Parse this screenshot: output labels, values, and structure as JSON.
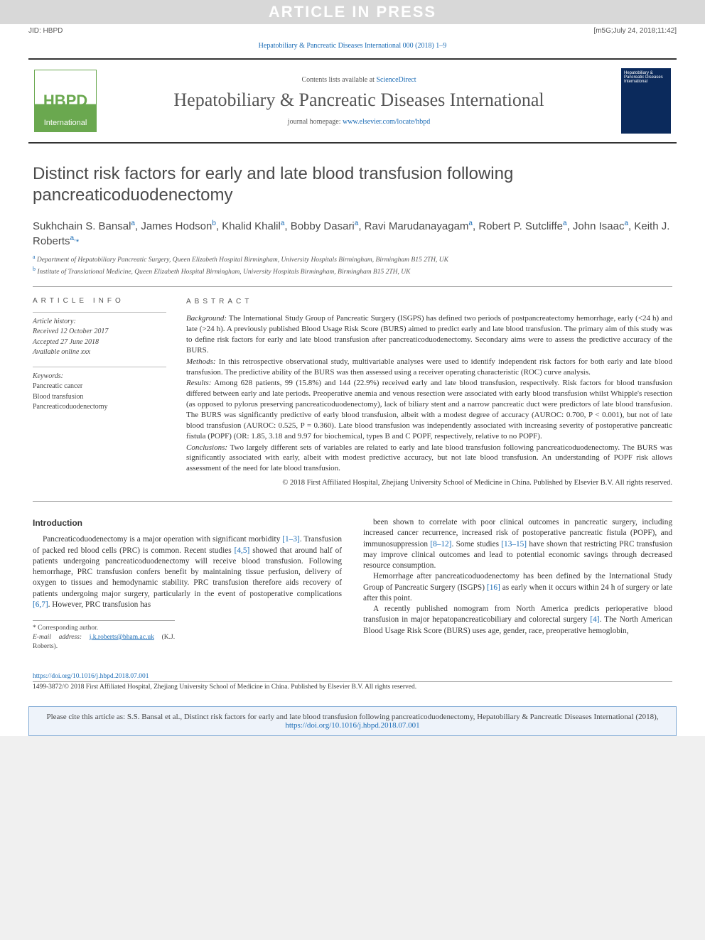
{
  "watermark": "ARTICLE IN PRESS",
  "meta_left": "JID: HBPD",
  "meta_right": "[m5G;July 24, 2018;11:42]",
  "citation_top": "Hepatobiliary & Pancreatic Diseases International 000 (2018) 1–9",
  "masthead": {
    "logo_top": "HBPD",
    "logo_bottom": "International",
    "contents_prefix": "Contents lists available at ",
    "contents_link": "ScienceDirect",
    "journal_title": "Hepatobiliary & Pancreatic Diseases International",
    "homepage_prefix": "journal homepage: ",
    "homepage_url": "www.elsevier.com/locate/hbpd",
    "cover_text": "Hepatobiliary & Pancreatic Diseases International"
  },
  "article": {
    "title": "Distinct risk factors for early and late blood transfusion following pancreaticoduodenectomy",
    "authors_html": "Sukhchain S. Bansal<sup>a</sup>, James Hodson<sup>b</sup>, Khalid Khalil<sup>a</sup>, Bobby Dasari<sup>a</sup>, Ravi Marudanayagam<sup>a</sup>, Robert P. Sutcliffe<sup>a</sup>, John Isaac<sup>a</sup>, Keith J. Roberts<sup>a,</sup><span class='corr'>*</span>",
    "affiliations": [
      {
        "sup": "a",
        "text": "Department of Hepatobiliary Pancreatic Surgery, Queen Elizabeth Hospital Birmingham, University Hospitals Birmingham, Birmingham B15 2TH, UK"
      },
      {
        "sup": "b",
        "text": "Institute of Translational Medicine, Queen Elizabeth Hospital Birmingham, University Hospitals Birmingham, Birmingham B15 2TH, UK"
      }
    ]
  },
  "info": {
    "heading": "article info",
    "history_label": "Article history:",
    "received": "Received 12 October 2017",
    "accepted": "Accepted 27 June 2018",
    "available": "Available online xxx",
    "keywords_label": "Keywords:",
    "keywords": [
      "Pancreatic cancer",
      "Blood transfusion",
      "Pancreaticoduodenectomy"
    ]
  },
  "abstract": {
    "heading": "abstract",
    "sections": [
      {
        "label": "Background:",
        "text": "The International Study Group of Pancreatic Surgery (ISGPS) has defined two periods of postpancreatectomy hemorrhage, early (<24 h) and late (>24 h). A previously published Blood Usage Risk Score (BURS) aimed to predict early and late blood transfusion. The primary aim of this study was to define risk factors for early and late blood transfusion after pancreaticoduodenectomy. Secondary aims were to assess the predictive accuracy of the BURS."
      },
      {
        "label": "Methods:",
        "text": "In this retrospective observational study, multivariable analyses were used to identify independent risk factors for both early and late blood transfusion. The predictive ability of the BURS was then assessed using a receiver operating characteristic (ROC) curve analysis."
      },
      {
        "label": "Results:",
        "text": "Among 628 patients, 99 (15.8%) and 144 (22.9%) received early and late blood transfusion, respectively. Risk factors for blood transfusion differed between early and late periods. Preoperative anemia and venous resection were associated with early blood transfusion whilst Whipple's resection (as opposed to pylorus preserving pancreaticoduodenectomy), lack of biliary stent and a narrow pancreatic duct were predictors of late blood transfusion. The BURS was significantly predictive of early blood transfusion, albeit with a modest degree of accuracy (AUROC: 0.700, P < 0.001), but not of late blood transfusion (AUROC: 0.525, P = 0.360). Late blood transfusion was independently associated with increasing severity of postoperative pancreatic fistula (POPF) (OR: 1.85, 3.18 and 9.97 for biochemical, types B and C POPF, respectively, relative to no POPF)."
      },
      {
        "label": "Conclusions:",
        "text": "Two largely different sets of variables are related to early and late blood transfusion following pancreaticoduodenectomy. The BURS was significantly associated with early, albeit with modest predictive accuracy, but not late blood transfusion. An understanding of POPF risk allows assessment of the need for late blood transfusion."
      }
    ],
    "copyright": "© 2018 First Affiliated Hospital, Zhejiang University School of Medicine in China. Published by Elsevier B.V. All rights reserved."
  },
  "body": {
    "intro_heading": "Introduction",
    "col1_p1": "Pancreaticoduodenectomy is a major operation with significant morbidity <span class='ref'>[1–3]</span>. Transfusion of packed red blood cells (PRC) is common. Recent studies <span class='ref'>[4,5]</span> showed that around half of patients undergoing pancreaticoduodenectomy will receive blood transfusion. Following hemorrhage, PRC transfusion confers benefit by maintaining tissue perfusion, delivery of oxygen to tissues and hemodynamic stability. PRC transfusion therefore aids recovery of patients undergoing major surgery, particularly in the event of postoperative complications <span class='ref'>[6,7]</span>. However, PRC transfusion has",
    "col2_p1": "been shown to correlate with poor clinical outcomes in pancreatic surgery, including increased cancer recurrence, increased risk of postoperative pancreatic fistula (POPF), and immunosuppression <span class='ref'>[8–12]</span>. Some studies <span class='ref'>[13–15]</span> have shown that restricting PRC transfusion may improve clinical outcomes and lead to potential economic savings through decreased resource consumption.",
    "col2_p2": "Hemorrhage after pancreaticoduodenectomy has been defined by the International Study Group of Pancreatic Surgery (ISGPS) <span class='ref'>[16]</span> as early when it occurs within 24 h of surgery or late after this point.",
    "col2_p3": "A recently published nomogram from North America predicts perioperative blood transfusion in major hepatopancreaticobiliary and colorectal surgery <span class='ref'>[4]</span>. The North American Blood Usage Risk Score (BURS) uses age, gender, race, preoperative hemoglobin,"
  },
  "footnotes": {
    "corr_label": "* Corresponding author.",
    "email_label": "E-mail address:",
    "email": "j.k.roberts@bham.ac.uk",
    "email_person": "(K.J. Roberts)."
  },
  "bottom": {
    "doi": "https://doi.org/10.1016/j.hbpd.2018.07.001",
    "issn_line": "1499-3872/© 2018 First Affiliated Hospital, Zhejiang University School of Medicine in China. Published by Elsevier B.V. All rights reserved."
  },
  "citebox": {
    "text_prefix": "Please cite this article as: S.S. Bansal et al., Distinct risk factors for early and late blood transfusion following pancreaticoduodenectomy, Hepatobiliary & Pancreatic Diseases International (2018), ",
    "link": "https://doi.org/10.1016/j.hbpd.2018.07.001"
  },
  "colors": {
    "link": "#1a6bb5",
    "logo_green": "#6aa84f",
    "cite_bg": "#eef3fa",
    "cite_border": "#7fa9d4"
  }
}
